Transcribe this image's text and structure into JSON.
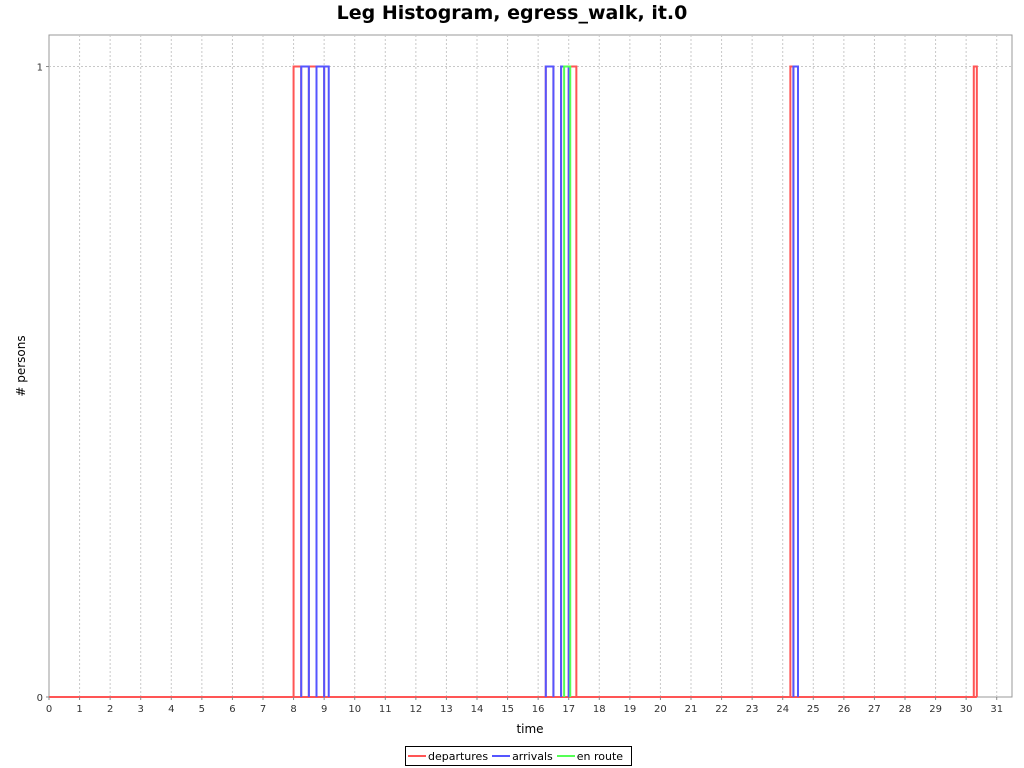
{
  "chart_data": {
    "type": "line",
    "title": "Leg Histogram, egress_walk, it.0",
    "xlabel": "time",
    "ylabel": "# persons",
    "xlim": [
      0,
      31.5
    ],
    "ylim": [
      0,
      1.05
    ],
    "x_ticks": [
      0,
      1,
      2,
      3,
      4,
      5,
      6,
      7,
      8,
      9,
      10,
      11,
      12,
      13,
      14,
      15,
      16,
      17,
      18,
      19,
      20,
      21,
      22,
      23,
      24,
      25,
      26,
      27,
      28,
      29,
      30,
      31
    ],
    "y_ticks": [
      0,
      1
    ],
    "grid": true,
    "legend_position": "bottom",
    "series": [
      {
        "name": "departures",
        "color": "#ff5555",
        "pulses": [
          [
            8.0,
            8.25
          ],
          [
            8.5,
            8.75
          ],
          [
            8.75,
            9.0
          ],
          [
            16.25,
            16.5
          ],
          [
            16.75,
            17.0
          ],
          [
            17.0,
            17.25
          ],
          [
            24.25,
            24.35
          ],
          [
            30.25,
            30.35
          ]
        ]
      },
      {
        "name": "arrivals",
        "color": "#5555ff",
        "pulses": [
          [
            8.25,
            8.5
          ],
          [
            8.75,
            9.0
          ],
          [
            9.0,
            9.15
          ],
          [
            16.25,
            16.5
          ],
          [
            16.75,
            17.0
          ],
          [
            24.35,
            24.5
          ]
        ]
      },
      {
        "name": "en route",
        "color": "#55ff55",
        "pulses": [
          [
            16.85,
            17.05
          ]
        ]
      }
    ]
  }
}
